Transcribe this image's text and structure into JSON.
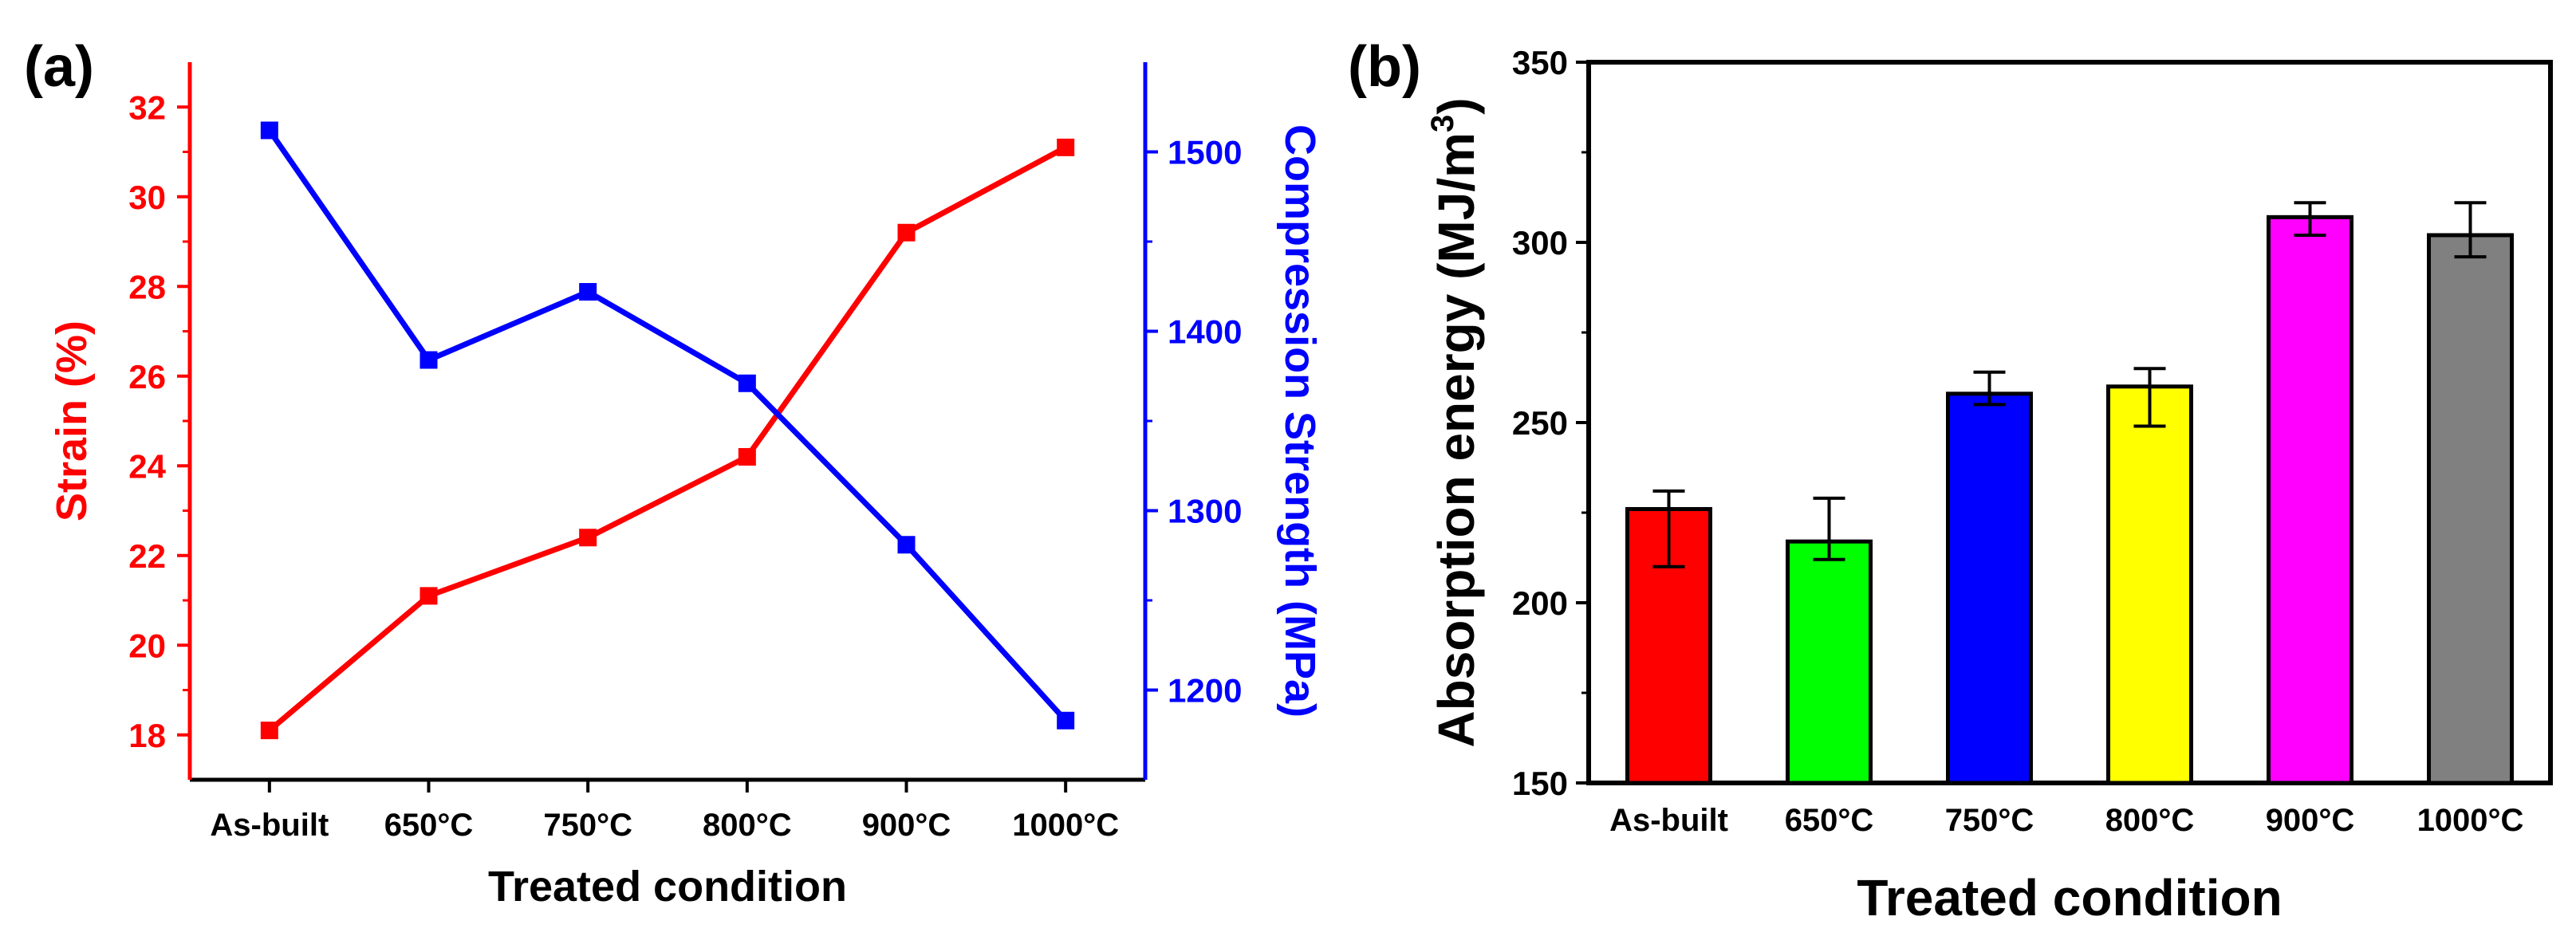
{
  "chart_data": [
    {
      "panel_label": "(a)",
      "type": "line",
      "categories": [
        "As-built",
        "650°C",
        "750°C",
        "800°C",
        "900°C",
        "1000°C"
      ],
      "xlabel": "Treated condition",
      "y_left": {
        "label": "Strain (%)",
        "color": "#ff0000",
        "ylim": [
          17,
          33
        ],
        "ticks": [
          "18",
          "20",
          "22",
          "24",
          "26",
          "28",
          "30",
          "32"
        ]
      },
      "y_right": {
        "label": "Compression Strength (MPa)",
        "color": "#0000ff",
        "ylim": [
          1150,
          1550
        ],
        "ticks": [
          "1200",
          "1300",
          "1400",
          "1500"
        ]
      },
      "series": [
        {
          "name": "Strain",
          "axis": "left",
          "color": "#ff0000",
          "values": [
            18.1,
            21.1,
            22.4,
            24.2,
            29.2,
            31.1
          ]
        },
        {
          "name": "Compression Strength",
          "axis": "right",
          "color": "#0000ff",
          "values": [
            1512,
            1384,
            1422,
            1371,
            1281,
            1183
          ]
        }
      ]
    },
    {
      "panel_label": "(b)",
      "type": "bar",
      "categories": [
        "As-built",
        "650°C",
        "750°C",
        "800°C",
        "900°C",
        "1000°C"
      ],
      "xlabel": "Treated condition",
      "ylabel": "Absorption energy (MJ/m",
      "ylabel_sup": "3",
      "ylabel_end": ")",
      "ylim": [
        150,
        350
      ],
      "yticks": [
        "150",
        "200",
        "250",
        "300",
        "350"
      ],
      "values": [
        226,
        217,
        258,
        260,
        307,
        302
      ],
      "err_low": [
        210,
        212,
        255,
        249,
        302,
        296
      ],
      "err_high": [
        231,
        229,
        264,
        265,
        311,
        311
      ],
      "colors": [
        "#ff0000",
        "#00ff00",
        "#0000ff",
        "#ffff00",
        "#ff00ff",
        "#808080"
      ]
    }
  ]
}
